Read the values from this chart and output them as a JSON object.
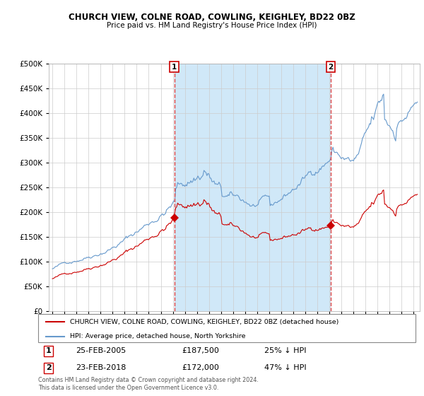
{
  "title": "CHURCH VIEW, COLNE ROAD, COWLING, KEIGHLEY, BD22 0BZ",
  "subtitle": "Price paid vs. HM Land Registry's House Price Index (HPI)",
  "legend_property": "CHURCH VIEW, COLNE ROAD, COWLING, KEIGHLEY, BD22 0BZ (detached house)",
  "legend_hpi": "HPI: Average price, detached house, North Yorkshire",
  "footer": "Contains HM Land Registry data © Crown copyright and database right 2024.\nThis data is licensed under the Open Government Licence v3.0.",
  "sale1_label": "1",
  "sale1_date": "25-FEB-2005",
  "sale1_price": "£187,500",
  "sale1_hpi": "25% ↓ HPI",
  "sale1_year": 2005.12,
  "sale1_value": 187500,
  "sale2_label": "2",
  "sale2_date": "23-FEB-2018",
  "sale2_price": "£172,000",
  "sale2_hpi": "47% ↓ HPI",
  "sale2_year": 2018.12,
  "sale2_value": 172000,
  "property_color": "#cc0000",
  "hpi_color": "#6699cc",
  "shade_color": "#d0e8f8",
  "vline_color": "#dd4444",
  "ylim": [
    0,
    500000
  ],
  "yticks": [
    0,
    50000,
    100000,
    150000,
    200000,
    250000,
    300000,
    350000,
    400000,
    450000,
    500000
  ],
  "xlim_start": 1994.7,
  "xlim_end": 2025.5,
  "xticks": [
    1995,
    1996,
    1997,
    1998,
    1999,
    2000,
    2001,
    2002,
    2003,
    2004,
    2005,
    2006,
    2007,
    2008,
    2009,
    2010,
    2011,
    2012,
    2013,
    2014,
    2015,
    2016,
    2017,
    2018,
    2019,
    2020,
    2021,
    2022,
    2023,
    2024,
    2025
  ]
}
